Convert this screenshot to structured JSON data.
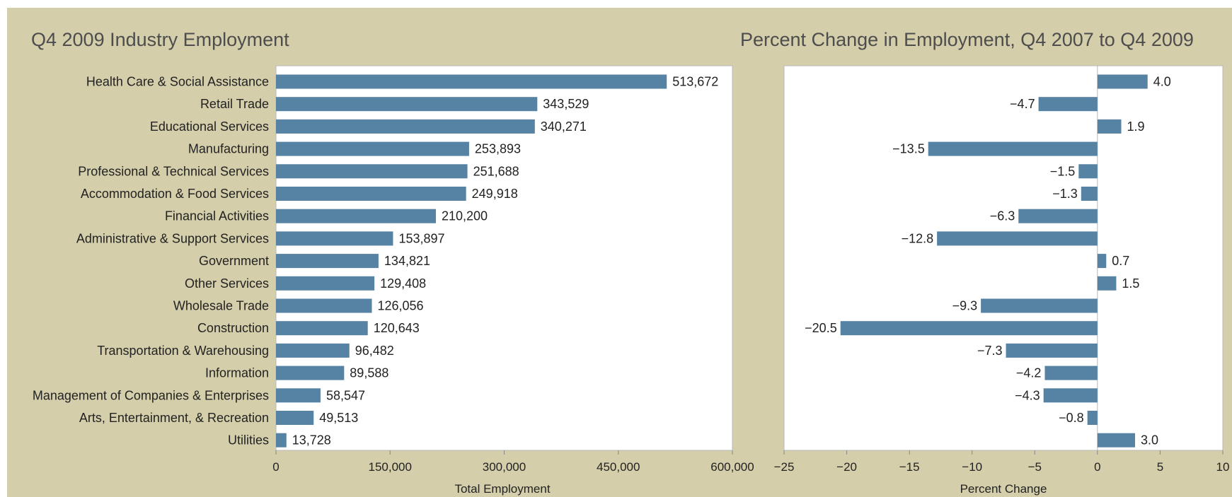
{
  "colors": {
    "panel": "#d4ceaa",
    "plot": "#ffffff",
    "bar": "#5682a3",
    "frame": "#b8b8b8"
  },
  "chart_data": [
    {
      "type": "bar",
      "orientation": "horizontal",
      "title": "Q4 2009 Industry Employment",
      "xlabel": "Total Employment",
      "xlim": [
        0,
        600000
      ],
      "xticks": [
        0,
        150000,
        300000,
        450000,
        600000
      ],
      "xtick_labels": [
        "0",
        "150,000",
        "300,000",
        "450,000",
        "600,000"
      ],
      "categories": [
        "Health Care & Social Assistance",
        "Retail Trade",
        "Educational Services",
        "Manufacturing",
        "Professional & Technical Services",
        "Accommodation & Food Services",
        "Financial Activities",
        "Administrative & Support Services",
        "Government",
        "Other Services",
        "Wholesale Trade",
        "Construction",
        "Transportation & Warehousing",
        "Information",
        "Management of Companies & Enterprises",
        "Arts, Entertainment, & Recreation",
        "Utilities"
      ],
      "values": [
        513672,
        343529,
        340271,
        253893,
        251688,
        249918,
        210200,
        153897,
        134821,
        129408,
        126056,
        120643,
        96482,
        89588,
        58547,
        49513,
        13728
      ],
      "value_labels": [
        "513,672",
        "343,529",
        "340,271",
        "253,893",
        "251,688",
        "249,918",
        "210,200",
        "153,897",
        "134,821",
        "129,408",
        "126,056",
        "120,643",
        "96,482",
        "89,588",
        "58,547",
        "49,513",
        "13,728"
      ]
    },
    {
      "type": "bar",
      "orientation": "horizontal",
      "title": "Percent Change in Employment, Q4 2007 to Q4 2009",
      "xlabel": "Percent Change",
      "xlim": [
        -25,
        10
      ],
      "xticks": [
        -25,
        -20,
        -15,
        -10,
        -5,
        0,
        5,
        10
      ],
      "xtick_labels": [
        "−25",
        "−20",
        "−15",
        "−10",
        "−5",
        "0",
        "5",
        "10"
      ],
      "values": [
        4.0,
        -4.7,
        1.9,
        -13.5,
        -1.5,
        -1.3,
        -6.3,
        -12.8,
        0.7,
        1.5,
        -9.3,
        -20.5,
        -7.3,
        -4.2,
        -4.3,
        -0.8,
        3.0
      ],
      "value_labels": [
        "4.0",
        "−4.7",
        "1.9",
        "−13.5",
        "−1.5",
        "−1.3",
        "−6.3",
        "−12.8",
        "0.7",
        "1.5",
        "−9.3",
        "−20.5",
        "−7.3",
        "−4.2",
        "−4.3",
        "−0.8",
        "3.0"
      ]
    }
  ]
}
